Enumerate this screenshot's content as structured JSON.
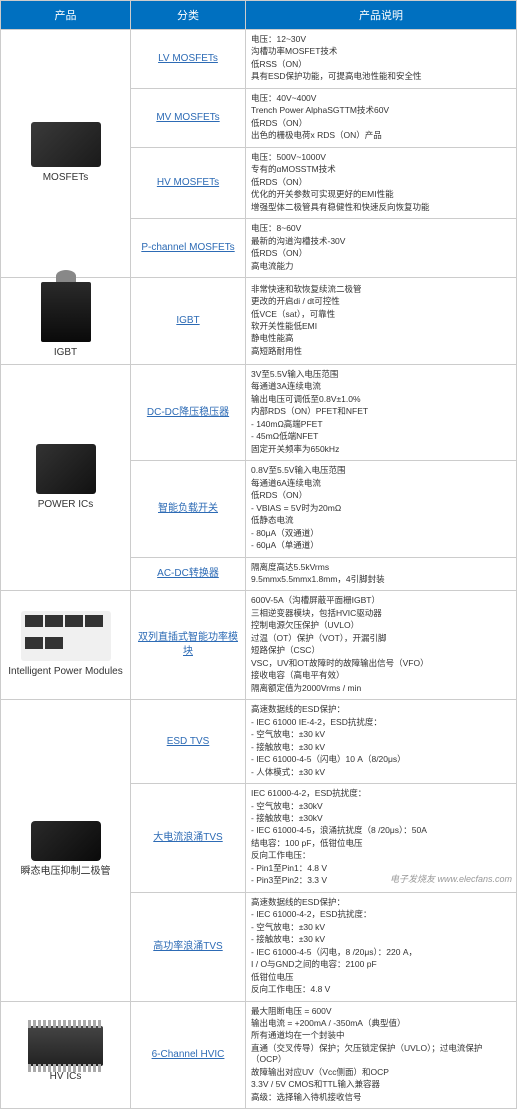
{
  "headers": {
    "product": "产品",
    "category": "分类",
    "description": "产品说明"
  },
  "rows": [
    {
      "product": "MOSFETs",
      "chipClass": "chip-mosfet",
      "rowspan": 4,
      "categories": [
        {
          "name": "LV MOSFETs",
          "desc": [
            "电压：12~30V",
            "沟槽功率MOSFET技术",
            "低RSS（ON）",
            "具有ESD保护功能，可提高电池性能和安全性"
          ]
        },
        {
          "name": "MV MOSFETs",
          "desc": [
            "电压：40V~400V",
            "Trench Power AlphaSGTTM技术60V",
            "低RDS（ON）",
            "出色的栅极电荷x RDS（ON）产品"
          ]
        },
        {
          "name": "HV MOSFETs",
          "desc": [
            "电压：500V~1000V",
            "专有的αMOSSTM技术",
            "低RDS（ON）",
            "优化的开关参数可实现更好的EMI性能",
            "增强型体二极管具有稳健性和快速反向恢复功能"
          ]
        },
        {
          "name": "P-channel MOSFETs",
          "desc": [
            "电压：8~60V",
            "最新的沟道沟槽技术-30V",
            "低RDS（ON）",
            "高电流能力"
          ]
        }
      ]
    },
    {
      "product": "IGBT",
      "chipClass": "chip-igbt",
      "rowspan": 1,
      "categories": [
        {
          "name": "IGBT",
          "desc": [
            "非常快速和软恢复续流二极管",
            "更改的开启di / dt可控性",
            "低VCE（sat），可靠性",
            "软开关性能低EMI",
            "静电性能高",
            "高短路耐用性"
          ]
        }
      ]
    },
    {
      "product": "POWER ICs",
      "chipClass": "chip-power",
      "rowspan": 3,
      "categories": [
        {
          "name": "DC-DC降压稳压器",
          "desc": [
            "3V至5.5V输入电压范围",
            "每通道3A连续电流",
            "输出电压可调低至0.8V±1.0%",
            "内部RDS（ON）PFET和NFET",
            "- 140mΩ高端PFET",
            "- 45mΩ低端NFET",
            "固定开关频率为650kHz"
          ]
        },
        {
          "name": "智能负载开关",
          "desc": [
            "0.8V至5.5V输入电压范围",
            "每通道6A连续电流",
            "低RDS（ON）",
            "- VBIAS = 5V时为20mΩ",
            "低静态电流",
            "- 80μA（双通道）",
            "- 60μA（单通道）"
          ]
        },
        {
          "name": "AC-DC转换器",
          "desc": [
            "隔离度高达5.5kVrms",
            "9.5mmx5.5mmx1.8mm，4引脚封装"
          ]
        }
      ]
    },
    {
      "product": "Intelligent Power Modules",
      "chipClass": "chip-ipm",
      "rowspan": 1,
      "categories": [
        {
          "name": "双列直插式智能功率模块",
          "desc": [
            "600V-5A（沟槽屏蔽平面栅IGBT）",
            "三相逆变器模块，包括HVIC驱动器",
            "控制电源欠压保护（UVLO）",
            "过温（OT）保护（VOT），开漏引脚",
            "短路保护（CSC）",
            "VSC，UV和OT故障时的故障输出信号（VFO）",
            "接收电容（高电平有效）",
            "隔离额定值为2000Vrms / min"
          ]
        }
      ]
    },
    {
      "product": "瞬态电压抑制二极管",
      "chipClass": "chip-tvs",
      "rowspan": 3,
      "categories": [
        {
          "name": "ESD TVS",
          "desc": [
            "高速数据线的ESD保护：",
            "- IEC 61000 IE-4-2，ESD抗扰度：",
            "- 空气放电：±30 kV",
            "- 接触放电：±30 kV",
            "- IEC 61000-4-5（闪电）10 A（8/20μs）",
            "- 人体模式：±30 kV"
          ]
        },
        {
          "name": "大电流浪涌TVS",
          "desc": [
            "IEC 61000-4-2，ESD抗扰度：",
            "- 空气放电：±30kV",
            "- 接触放电：±30kV",
            "- IEC 61000-4-5，浪涌抗扰度（8 /20μs）：50A",
            "结电容：100 pF，低钳位电压",
            "反向工作电压：",
            "- Pin1至Pin1：4.8 V",
            "- Pin3至Pin2：3.3 V"
          ]
        },
        {
          "name": "高功率浪涌TVS",
          "desc": [
            "高速数据线的ESD保护：",
            "- IEC 61000-4-2，ESD抗扰度：",
            "- 空气放电：±30 kV",
            "- 接触放电：±30 kV",
            "- IEC 61000-4-5（闪电，8 /20μs）：220 A，",
            "I / O与GND之间的电容：2100 pF",
            "低钳位电压",
            "反向工作电压：4.8 V"
          ]
        }
      ]
    },
    {
      "product": "HV ICs",
      "chipClass": "chip-hvic",
      "rowspan": 1,
      "categories": [
        {
          "name": "6-Channel HVIC",
          "desc": [
            "最大阻断电压 = 600V",
            "输出电流 = +200mA / -350mA（典型值）",
            "所有通道均在一个封装中",
            "直通（交叉传导）保护；欠压锁定保护（UVLO）；过电流保护（OCP）",
            "故障输出对应UV（Vcc侧面）和OCP",
            "3.3V / 5V CMOS和TTL输入兼容器",
            "高级：选择输入待机接收信号"
          ]
        }
      ]
    }
  ],
  "watermark": "电子发烧友 www.elecfans.com"
}
